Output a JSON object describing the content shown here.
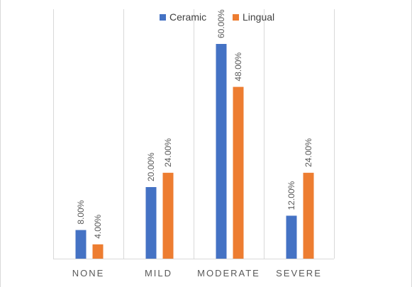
{
  "chart_data": {
    "type": "bar",
    "categories": [
      "NONE",
      "MILD",
      "MODERATE",
      "SEVERE"
    ],
    "series": [
      {
        "name": "Ceramic",
        "values": [
          8.0,
          20.0,
          60.0,
          12.0
        ],
        "labels": [
          "8.00%",
          "20.00%",
          "60.00%",
          "12.00%"
        ],
        "color": "#4472C4"
      },
      {
        "name": "Lingual",
        "values": [
          4.0,
          24.0,
          48.0,
          24.0
        ],
        "labels": [
          "4.00%",
          "24.00%",
          "48.00%",
          "24.00%"
        ],
        "color": "#ED7D31"
      }
    ],
    "ylim": [
      0,
      70
    ],
    "y_unit": "percent",
    "title": "",
    "xlabel": "",
    "ylabel": "",
    "legend_position": "top",
    "grid": "vertical category separators",
    "data_labels": "rotated above bars",
    "gridline_color": "#D9D9D9",
    "text_color": "#595959"
  }
}
